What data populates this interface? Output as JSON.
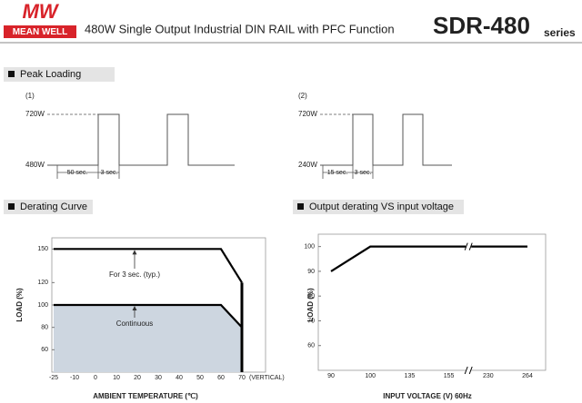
{
  "header": {
    "logo_mark": "MW",
    "logo_text": "MEAN WELL",
    "title": "480W Single Output Industrial DIN RAIL with PFC Function",
    "model": "SDR-480",
    "series_word": "series"
  },
  "peak_loading": {
    "title": "Peak Loading",
    "diagrams": [
      {
        "label": "(1)",
        "high": "720W",
        "low": "480W",
        "period_1": "50 sec.",
        "period_2": "3 sec."
      },
      {
        "label": "(2)",
        "high": "720W",
        "low": "240W",
        "period_1": "15 sec.",
        "period_2": "3 sec."
      }
    ]
  },
  "chart_data": [
    {
      "type": "line",
      "title": "Derating Curve",
      "x_label": "AMBIENT TEMPERATURE (℃)",
      "y_label": "LOAD (%)",
      "x_note": "(VERTICAL)",
      "categories": [
        "-25",
        "-10",
        "0",
        "10",
        "20",
        "30",
        "40",
        "50",
        "60",
        "70"
      ],
      "series": [
        {
          "name": "For 3 sec. (typ.)",
          "color": "#000000",
          "values": [
            150,
            150,
            150,
            150,
            150,
            150,
            150,
            150,
            150,
            120
          ]
        },
        {
          "name": "Continuous",
          "color": "#000000",
          "area_color": "#cdd6e0",
          "values": [
            100,
            100,
            100,
            100,
            100,
            100,
            100,
            100,
            100,
            80
          ]
        }
      ],
      "ylim": [
        40,
        160
      ],
      "yticks": [
        60,
        80,
        100,
        120,
        150
      ]
    },
    {
      "type": "line",
      "title": "Output derating VS input voltage",
      "x_label": "INPUT VOLTAGE (V) 60Hz",
      "y_label": "LOAD (%)",
      "categories": [
        "90",
        "100",
        "135",
        "155",
        "230",
        "264"
      ],
      "series": [
        {
          "color": "#000000",
          "values": [
            90,
            100,
            100,
            100,
            100,
            100
          ]
        }
      ],
      "ylim": [
        50,
        105
      ],
      "yticks": [
        60,
        70,
        80,
        90,
        100
      ]
    }
  ]
}
